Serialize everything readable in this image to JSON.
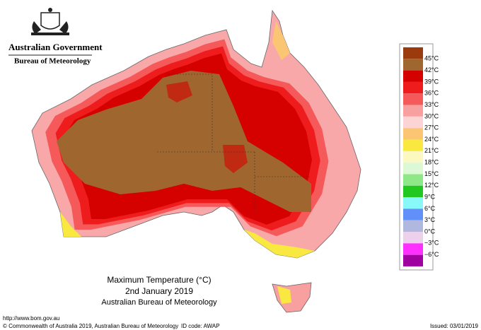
{
  "header": {
    "government": "Australian Government",
    "agency": "Bureau of Meteorology"
  },
  "map": {
    "title": "Maximum Temperature (°C)",
    "date": "2nd January 2019",
    "source": "Australian Bureau of Meteorology"
  },
  "legend": {
    "colors": [
      "#9b3a0c",
      "#a0662f",
      "#d50000",
      "#ee1c1c",
      "#f5595a",
      "#f8a0a0",
      "#fcd4d4",
      "#fbc673",
      "#f8e840",
      "#fbf8c0",
      "#ddf8d5",
      "#8ee888",
      "#20c820",
      "#88f8f8",
      "#6090f8",
      "#b0b8e0",
      "#ecd0ec",
      "#ff30ff",
      "#a000a0"
    ],
    "labels": [
      "45°C",
      "42°C",
      "39°C",
      "36°C",
      "33°C",
      "30°C",
      "27°C",
      "24°C",
      "21°C",
      "18°C",
      "15°C",
      "12°C",
      "9°C",
      "6°C",
      "3°C",
      "0°C",
      "−3°C",
      "−6°C"
    ]
  },
  "footer": {
    "url": "http://www.bom.gov.au",
    "copyright": "© Commonwealth of Australia 2019, Australian Bureau of Meteorology",
    "id_code": "ID code: AWAP",
    "issued": "Issued: 03/01/2019"
  }
}
